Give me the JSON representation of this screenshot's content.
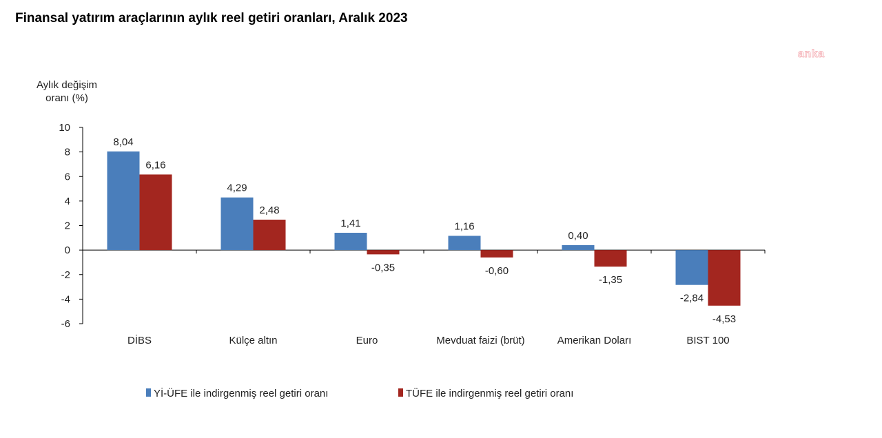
{
  "title": "Finansal yatırım araçlarının aylık reel getiri oranları, Aralık 2023",
  "watermark": "anka",
  "chart_data": {
    "type": "bar",
    "ylabel_lines": [
      "Aylık değişim",
      "oranı (%)"
    ],
    "xlabel": "",
    "ylim": [
      -6,
      10
    ],
    "yticks": [
      10,
      8,
      6,
      4,
      2,
      0,
      -2,
      -4,
      -6
    ],
    "categories": [
      "DİBS",
      "Külçe altın",
      "Euro",
      "Mevduat faizi (brüt)",
      "Amerikan Doları",
      "BIST 100"
    ],
    "series": [
      {
        "name": "Yİ-ÜFE ile indirgenmiş reel getiri oranı",
        "color": "#4a7ebb",
        "values": [
          8.04,
          4.29,
          1.41,
          1.16,
          0.4,
          -2.84
        ],
        "labels": [
          "8,04",
          "4,29",
          "1,41",
          "1,16",
          "0,40",
          "-2,84"
        ]
      },
      {
        "name": "TÜFE ile indirgenmiş reel getiri oranı",
        "color": "#a3261f",
        "values": [
          6.16,
          2.48,
          -0.35,
          -0.6,
          -1.35,
          -4.53
        ],
        "labels": [
          "6,16",
          "2,48",
          "-0,35",
          "-0,60",
          "-1,35",
          "-4,53"
        ]
      }
    ],
    "grid": false,
    "legend": "bottom"
  }
}
